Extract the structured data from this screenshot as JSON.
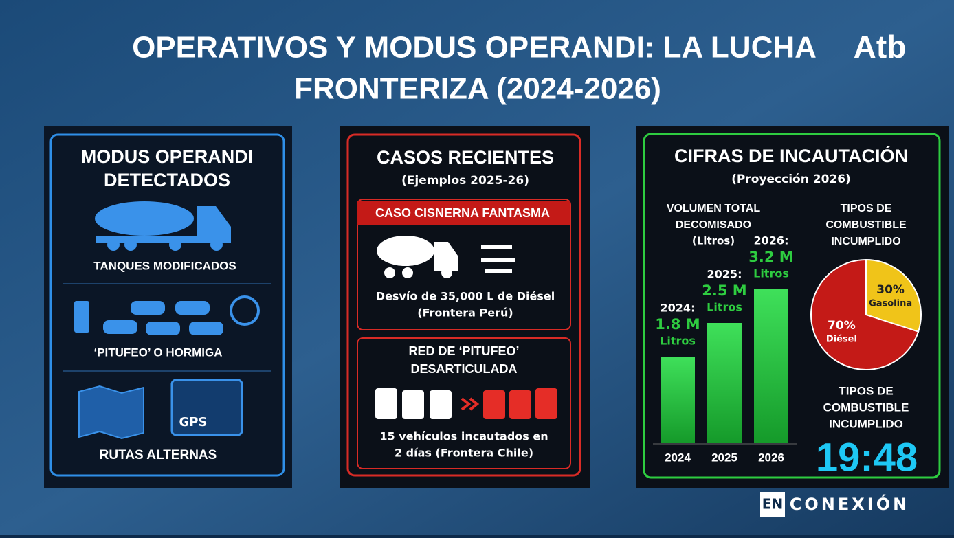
{
  "header": {
    "title_line1": "OPERATIVOS Y MODUS OPERANDI: LA LUCHA",
    "title_line2": "FRONTERIZA (2024-2026)",
    "logo": "Atb"
  },
  "panel_modus": {
    "title_line1": "MODUS OPERANDI",
    "title_line2": "DETECTADOS",
    "items": [
      "TANQUES MODIFICADOS",
      "‘PITUFEO’ O HORMIGA",
      "RUTAS ALTERNAS"
    ],
    "gps": "GPS"
  },
  "panel_casos": {
    "title": "CASOS RECIENTES",
    "subtitle": "(Ejemplos 2025-26)",
    "cases": [
      {
        "heading": "CASO CISNERNA FANTASMA",
        "text_line1": "Desvío de 35,000 L de Diésel",
        "text_line2": "(Frontera Perú)"
      },
      {
        "heading_line1": "RED DE ‘PITUFEO’",
        "heading_line2": "DESARTICULADA",
        "text_line1": "15 vehículos incautados en",
        "text_line2": "2 días (Frontera Chile)"
      }
    ]
  },
  "panel_cifras": {
    "title": "CIFRAS DE INCAUTACIÓN",
    "subtitle": "(Proyección 2026)",
    "bar_chart": {
      "type": "bar",
      "title_line1": "VOLUMEN TOTAL",
      "title_line2": "DECOMISADO",
      "unit": "(Litros)",
      "categories": [
        "2024",
        "2025",
        "2026"
      ],
      "year_labels": [
        "2024:",
        "2025:",
        "2026:"
      ],
      "values": [
        1.8,
        2.5,
        3.2
      ],
      "value_labels": [
        "1.8 M",
        "2.5 M",
        "3.2 M"
      ],
      "unit_word": "Litros",
      "color": "#2ecc40"
    },
    "pie_chart": {
      "type": "pie",
      "title_line1": "TIPOS DE",
      "title_line2": "COMBUSTIBLE",
      "title_line3": "INCUMPLIDO",
      "slices": [
        {
          "name": "Gasolina",
          "value": 30,
          "label": "30%",
          "color": "#f0c419"
        },
        {
          "name": "Diésel",
          "value": 70,
          "label": "70%",
          "color": "#c41a17"
        }
      ]
    },
    "footer_heading_line1": "TIPOS DE",
    "footer_heading_line2": "COMBUSTIBLE",
    "footer_heading_line3": "INCUMPLIDO",
    "clock": "19:48"
  },
  "footer": {
    "brand_box": "EN",
    "brand_text": "CONEXIÓN"
  }
}
